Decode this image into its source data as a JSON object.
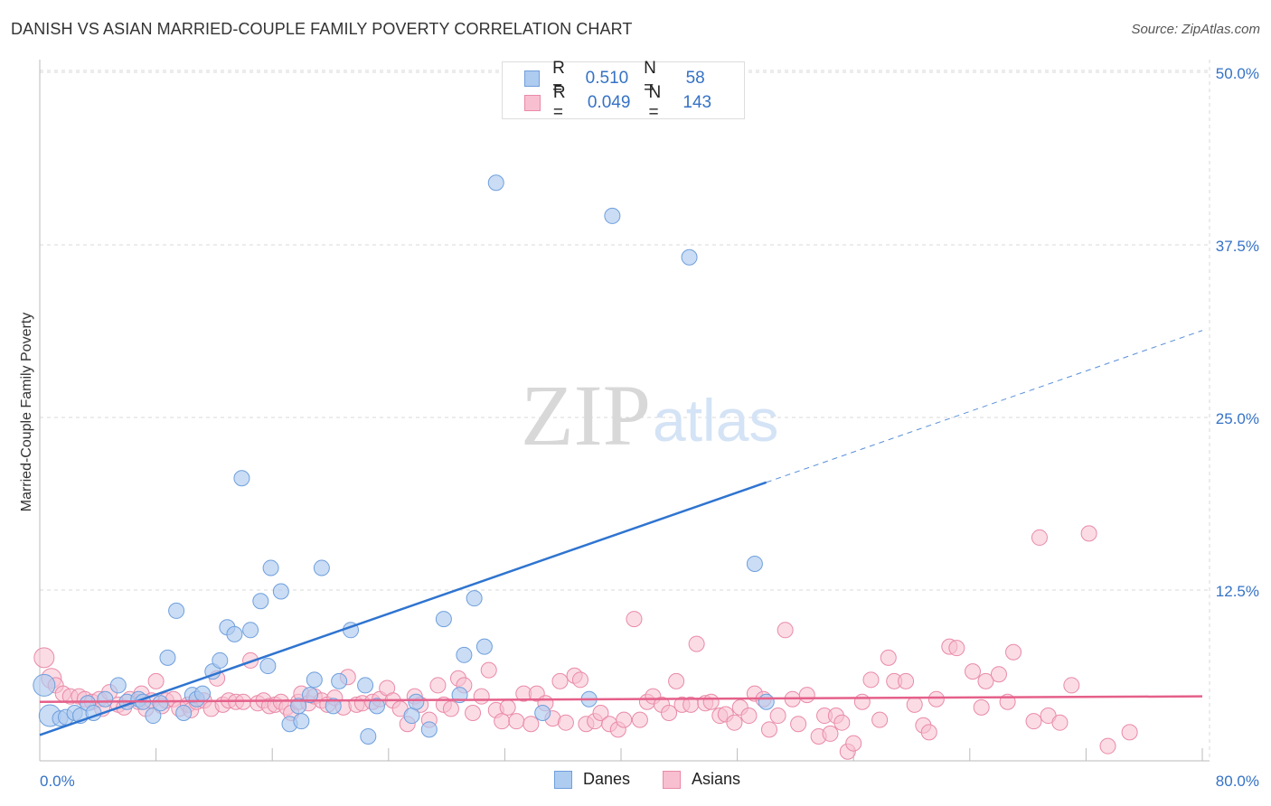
{
  "title": "DANISH VS ASIAN MARRIED-COUPLE FAMILY POVERTY CORRELATION CHART",
  "source": "Source: ZipAtlas.com",
  "watermark": {
    "zip": "ZIP",
    "atlas": "atlas"
  },
  "legend": {
    "danes": {
      "r_label": "R =",
      "r_value": "0.510",
      "n_label": "N =",
      "n_value": "58"
    },
    "asians": {
      "r_label": "R =",
      "r_value": "0.049",
      "n_label": "N =",
      "n_value": "143"
    }
  },
  "colors": {
    "danes_fill": "#aecbf0",
    "danes_stroke": "#6f9fdc",
    "danes_line": "#2f74d0",
    "asians_fill": "#f8bfd0",
    "asians_stroke": "#e98aa8",
    "asians_line": "#e5608a",
    "grid": "#d9d9d9",
    "tick_label": "#3572c6"
  },
  "chart_data": {
    "type": "scatter",
    "title": "DANISH VS ASIAN MARRIED-COUPLE FAMILY POVERTY CORRELATION CHART",
    "xlabel": "",
    "ylabel": "Married-Couple Family Poverty",
    "xlim": [
      0,
      80
    ],
    "ylim": [
      0,
      52
    ],
    "x_tick_labels": [
      "0.0%",
      "80.0%"
    ],
    "y_ticks": [
      12.5,
      25.0,
      37.5,
      50.0
    ],
    "y_tick_labels": [
      "12.5%",
      "25.0%",
      "37.5%",
      "50.0%"
    ],
    "grid": true,
    "legend_position": "top-center",
    "series": [
      {
        "name": "Danes",
        "r": 0.51,
        "n": 58,
        "trend": {
          "x0": 0,
          "y0": 2.0,
          "x1": 50,
          "y1": 20.3,
          "dashed_to_x": 80,
          "dashed_to_y": 31.3
        },
        "points": [
          [
            0.3,
            5.6
          ],
          [
            0.7,
            3.4
          ],
          [
            1.4,
            3.2
          ],
          [
            1.8,
            3.3
          ],
          [
            2.4,
            3.6
          ],
          [
            2.8,
            3.4
          ],
          [
            3.3,
            4.3
          ],
          [
            3.7,
            3.6
          ],
          [
            4.5,
            4.6
          ],
          [
            5.4,
            5.6
          ],
          [
            6.0,
            4.4
          ],
          [
            6.8,
            4.6
          ],
          [
            7.1,
            4.4
          ],
          [
            7.8,
            3.4
          ],
          [
            8.3,
            4.3
          ],
          [
            8.8,
            7.6
          ],
          [
            9.4,
            11.0
          ],
          [
            9.9,
            3.6
          ],
          [
            10.5,
            4.9
          ],
          [
            10.8,
            4.6
          ],
          [
            11.2,
            5.0
          ],
          [
            11.9,
            6.6
          ],
          [
            12.4,
            7.4
          ],
          [
            12.9,
            9.8
          ],
          [
            13.4,
            9.3
          ],
          [
            13.9,
            20.6
          ],
          [
            14.5,
            9.6
          ],
          [
            15.2,
            11.7
          ],
          [
            15.7,
            7.0
          ],
          [
            15.9,
            14.1
          ],
          [
            16.6,
            12.4
          ],
          [
            17.2,
            2.8
          ],
          [
            17.8,
            4.1
          ],
          [
            18.0,
            3.0
          ],
          [
            18.6,
            4.9
          ],
          [
            18.9,
            6.0
          ],
          [
            19.4,
            14.1
          ],
          [
            20.2,
            4.1
          ],
          [
            20.6,
            5.9
          ],
          [
            21.4,
            9.6
          ],
          [
            22.4,
            5.6
          ],
          [
            22.6,
            1.9
          ],
          [
            23.2,
            4.1
          ],
          [
            25.6,
            3.4
          ],
          [
            25.9,
            4.4
          ],
          [
            26.8,
            2.4
          ],
          [
            27.8,
            10.4
          ],
          [
            28.9,
            4.9
          ],
          [
            29.2,
            7.8
          ],
          [
            29.9,
            11.9
          ],
          [
            30.6,
            8.4
          ],
          [
            31.4,
            42.0
          ],
          [
            34.6,
            3.6
          ],
          [
            37.8,
            4.6
          ],
          [
            39.4,
            39.6
          ],
          [
            44.7,
            36.6
          ],
          [
            49.2,
            14.4
          ],
          [
            50.0,
            4.4
          ]
        ]
      },
      {
        "name": "Asians",
        "r": 0.049,
        "n": 143,
        "trend": {
          "x0": 0,
          "y0": 4.4,
          "x1": 80,
          "y1": 4.8
        },
        "points": [
          [
            0.3,
            7.6
          ],
          [
            0.8,
            6.1
          ],
          [
            1.1,
            5.6
          ],
          [
            1.6,
            5.0
          ],
          [
            2.1,
            4.8
          ],
          [
            2.7,
            4.8
          ],
          [
            3.1,
            4.6
          ],
          [
            3.6,
            4.4
          ],
          [
            4.1,
            4.6
          ],
          [
            4.3,
            3.9
          ],
          [
            4.8,
            5.1
          ],
          [
            5.4,
            4.2
          ],
          [
            5.8,
            4.0
          ],
          [
            6.2,
            4.6
          ],
          [
            6.8,
            4.4
          ],
          [
            7.0,
            5.0
          ],
          [
            7.3,
            3.9
          ],
          [
            7.7,
            4.5
          ],
          [
            8.0,
            5.9
          ],
          [
            8.4,
            4.1
          ],
          [
            8.7,
            4.5
          ],
          [
            9.2,
            4.6
          ],
          [
            9.6,
            3.9
          ],
          [
            10.2,
            4.2
          ],
          [
            10.4,
            3.8
          ],
          [
            10.8,
            4.4
          ],
          [
            11.3,
            4.5
          ],
          [
            11.8,
            3.9
          ],
          [
            12.2,
            6.1
          ],
          [
            12.6,
            4.2
          ],
          [
            13.0,
            4.5
          ],
          [
            13.5,
            4.4
          ],
          [
            14.0,
            4.4
          ],
          [
            14.5,
            7.4
          ],
          [
            15.0,
            4.3
          ],
          [
            15.4,
            4.5
          ],
          [
            15.8,
            4.1
          ],
          [
            16.2,
            4.2
          ],
          [
            16.6,
            4.4
          ],
          [
            17.0,
            4.0
          ],
          [
            17.3,
            3.6
          ],
          [
            17.8,
            4.4
          ],
          [
            18.0,
            5.0
          ],
          [
            18.5,
            4.3
          ],
          [
            18.9,
            4.8
          ],
          [
            19.4,
            4.5
          ],
          [
            19.8,
            4.2
          ],
          [
            20.3,
            4.7
          ],
          [
            20.9,
            4.0
          ],
          [
            21.2,
            6.2
          ],
          [
            21.8,
            4.2
          ],
          [
            22.2,
            4.3
          ],
          [
            22.9,
            4.4
          ],
          [
            23.4,
            4.6
          ],
          [
            23.9,
            5.4
          ],
          [
            24.3,
            4.5
          ],
          [
            24.8,
            3.9
          ],
          [
            25.3,
            2.8
          ],
          [
            25.8,
            4.8
          ],
          [
            26.2,
            4.2
          ],
          [
            26.8,
            3.1
          ],
          [
            27.4,
            5.6
          ],
          [
            27.8,
            4.2
          ],
          [
            28.3,
            3.9
          ],
          [
            28.8,
            6.1
          ],
          [
            29.2,
            5.6
          ],
          [
            29.8,
            3.6
          ],
          [
            30.4,
            4.8
          ],
          [
            30.9,
            6.7
          ],
          [
            31.4,
            3.8
          ],
          [
            31.8,
            3.0
          ],
          [
            32.2,
            4.0
          ],
          [
            32.8,
            3.0
          ],
          [
            33.3,
            5.0
          ],
          [
            33.8,
            2.8
          ],
          [
            34.2,
            5.0
          ],
          [
            34.8,
            4.3
          ],
          [
            35.3,
            3.2
          ],
          [
            35.8,
            5.9
          ],
          [
            36.2,
            2.9
          ],
          [
            36.8,
            6.3
          ],
          [
            37.2,
            6.0
          ],
          [
            37.6,
            2.8
          ],
          [
            38.2,
            3.0
          ],
          [
            38.6,
            3.6
          ],
          [
            39.2,
            2.8
          ],
          [
            39.8,
            2.4
          ],
          [
            40.2,
            3.1
          ],
          [
            40.9,
            10.4
          ],
          [
            41.3,
            3.1
          ],
          [
            41.8,
            4.4
          ],
          [
            42.2,
            4.8
          ],
          [
            42.8,
            4.2
          ],
          [
            43.3,
            3.6
          ],
          [
            43.8,
            5.9
          ],
          [
            44.2,
            4.2
          ],
          [
            44.8,
            4.2
          ],
          [
            45.2,
            8.6
          ],
          [
            45.8,
            4.3
          ],
          [
            46.2,
            4.4
          ],
          [
            46.8,
            3.4
          ],
          [
            47.2,
            3.5
          ],
          [
            47.8,
            2.9
          ],
          [
            48.2,
            4.0
          ],
          [
            48.8,
            3.4
          ],
          [
            49.2,
            5.0
          ],
          [
            49.8,
            4.6
          ],
          [
            50.2,
            2.4
          ],
          [
            50.8,
            3.4
          ],
          [
            51.3,
            9.6
          ],
          [
            51.8,
            4.6
          ],
          [
            52.2,
            2.8
          ],
          [
            52.8,
            4.9
          ],
          [
            53.6,
            1.9
          ],
          [
            54.0,
            3.4
          ],
          [
            54.4,
            2.1
          ],
          [
            54.8,
            3.4
          ],
          [
            55.2,
            2.9
          ],
          [
            55.6,
            0.8
          ],
          [
            56.0,
            1.4
          ],
          [
            56.6,
            4.4
          ],
          [
            57.2,
            6.0
          ],
          [
            57.8,
            3.1
          ],
          [
            58.4,
            7.6
          ],
          [
            58.8,
            5.9
          ],
          [
            59.6,
            5.9
          ],
          [
            60.2,
            4.2
          ],
          [
            60.8,
            2.7
          ],
          [
            61.2,
            2.2
          ],
          [
            61.7,
            4.6
          ],
          [
            62.6,
            8.4
          ],
          [
            63.1,
            8.3
          ],
          [
            64.2,
            6.6
          ],
          [
            64.8,
            4.0
          ],
          [
            65.1,
            5.9
          ],
          [
            66.0,
            6.4
          ],
          [
            66.6,
            4.4
          ],
          [
            67.0,
            8.0
          ],
          [
            68.4,
            3.0
          ],
          [
            68.8,
            16.3
          ],
          [
            69.4,
            3.4
          ],
          [
            70.2,
            2.9
          ],
          [
            71.0,
            5.6
          ],
          [
            72.2,
            16.6
          ],
          [
            73.5,
            1.2
          ],
          [
            75.0,
            2.2
          ]
        ]
      }
    ]
  },
  "bottom_legend": {
    "danes": "Danes",
    "asians": "Asians"
  }
}
